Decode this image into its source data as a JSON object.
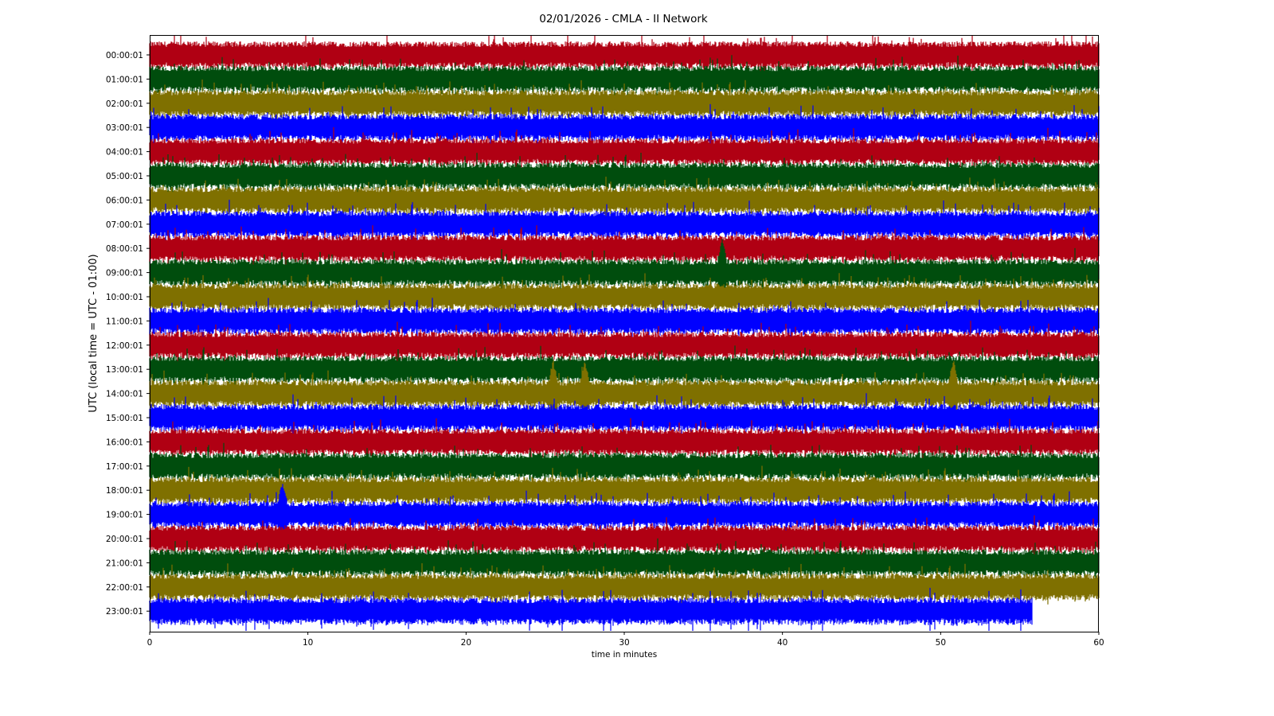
{
  "chart_data": {
    "type": "line",
    "title": "02/01/2026 - CMLA - II Network",
    "xlabel": "time in minutes",
    "ylabel": "UTC (local time = UTC - 01:00)",
    "xlim": [
      0,
      60
    ],
    "x_ticks": [
      "0",
      "10",
      "20",
      "30",
      "40",
      "50",
      "60"
    ],
    "y_ticks": [
      "00:00:01",
      "01:00:01",
      "02:00:01",
      "03:00:01",
      "04:00:01",
      "05:00:01",
      "06:00:01",
      "07:00:01",
      "08:00:01",
      "09:00:01",
      "10:00:01",
      "11:00:01",
      "12:00:01",
      "13:00:01",
      "14:00:01",
      "15:00:01",
      "16:00:01",
      "17:00:01",
      "18:00:01",
      "19:00:01",
      "20:00:01",
      "21:00:01",
      "22:00:01",
      "23:00:01"
    ],
    "grid": false,
    "trace_colors": [
      "#b00013",
      "#004d0d",
      "#7f7000",
      "#0000ff"
    ],
    "last_trace_end_minute": 55.8,
    "events": [
      {
        "row": "09:00:01",
        "minute": 36.2
      },
      {
        "row": "14:00:01",
        "minute": 25.5
      },
      {
        "row": "14:00:01",
        "minute": 27.5
      },
      {
        "row": "14:00:01",
        "minute": 50.8
      },
      {
        "row": "19:00:01",
        "minute": 8.4
      }
    ]
  }
}
